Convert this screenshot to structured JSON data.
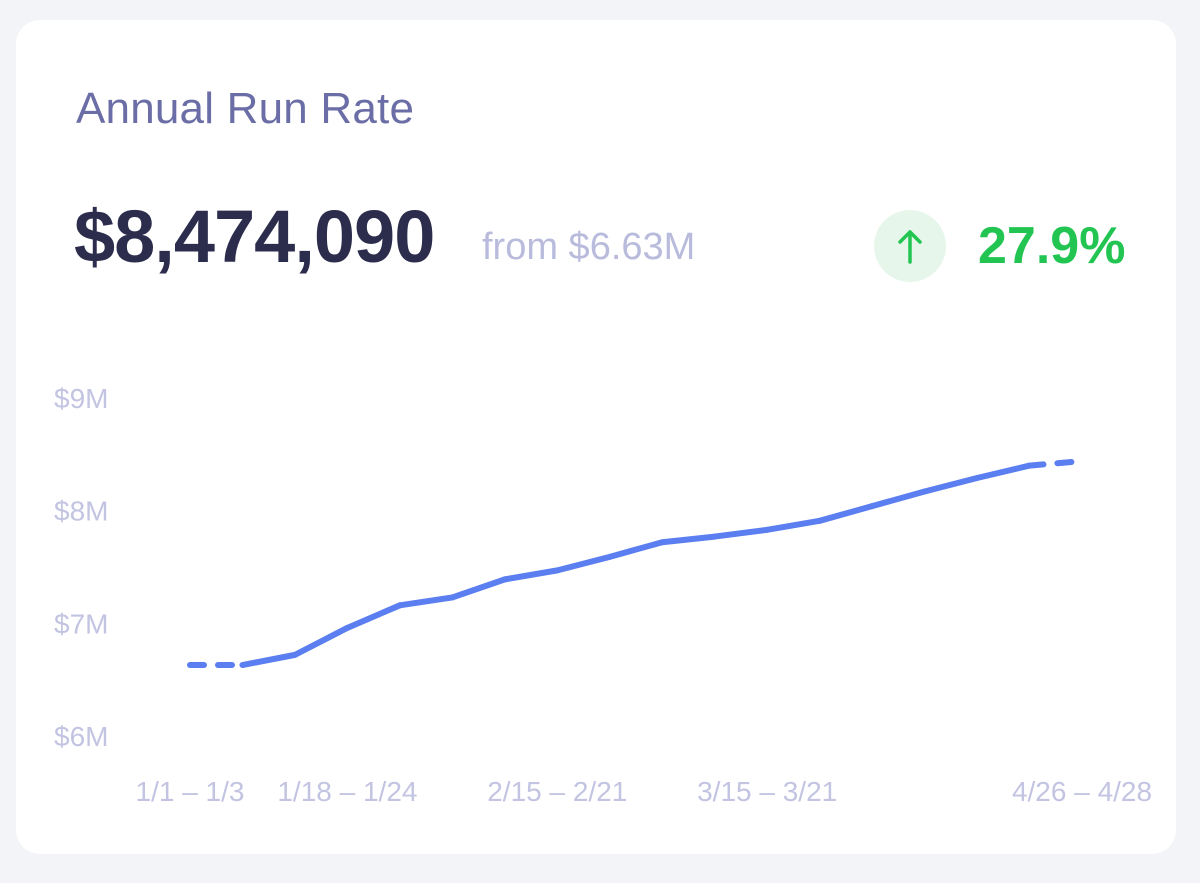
{
  "card": {
    "title": "Annual Run Rate",
    "value": "$8,474,090",
    "from_label": "from $6.63M",
    "change": "27.9%",
    "change_icon": "arrow-up-icon",
    "change_color": "#22c552",
    "line_color": "#5b7ef0"
  },
  "chart_data": {
    "type": "line",
    "title": "",
    "xlabel": "",
    "ylabel": "",
    "ylim": [
      6000000,
      9000000
    ],
    "yticks": [
      9000000,
      8000000,
      7000000,
      6000000
    ],
    "ytick_labels": [
      "$9M",
      "$8M",
      "$7M",
      "$6M"
    ],
    "x_tick_labels": [
      {
        "index": 0,
        "label": "1/1 – 1/3"
      },
      {
        "index": 3,
        "label": "1/18 – 1/24"
      },
      {
        "index": 7,
        "label": "2/15 – 2/21"
      },
      {
        "index": 11,
        "label": "3/15 – 3/21"
      },
      {
        "index": 17,
        "label": "4/26 – 4/28"
      }
    ],
    "grid": false,
    "legend": "none",
    "categories": [
      "1/1 – 1/3",
      "",
      "",
      "1/18 – 1/24",
      "",
      "",
      "",
      "2/15 – 2/21",
      "",
      "",
      "",
      "3/15 – 3/21",
      "",
      "",
      "",
      "",
      "",
      "4/26 – 4/28"
    ],
    "series": [
      {
        "values": [
          6630000,
          6630000,
          6720000,
          6960000,
          7160000,
          7230000,
          7390000,
          7470000,
          7590000,
          7720000,
          7770000,
          7830000,
          7910000,
          8040000,
          8170000,
          8290000,
          8400000,
          8440000
        ],
        "dashed_segments": [
          0,
          16
        ]
      }
    ]
  }
}
